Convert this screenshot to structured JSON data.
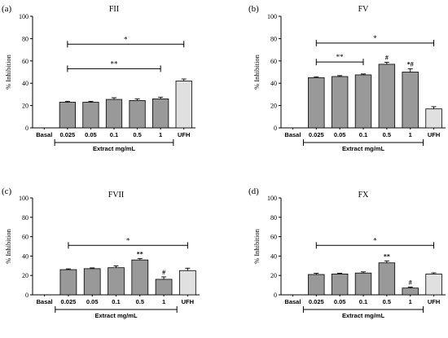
{
  "chart_data": [
    {
      "type": "bar",
      "letter": "(a)",
      "title": "FII",
      "ylabel": "% Inhibition",
      "xlabel": "Extract mg/mL",
      "ylim": [
        0,
        100
      ],
      "yticks": [
        0,
        20,
        40,
        60,
        80,
        100
      ],
      "categories": [
        "Basal",
        "0.025",
        "0.05",
        "0.1",
        "0.5",
        "1",
        "UFH"
      ],
      "values": [
        0,
        23,
        23,
        25.5,
        24.5,
        26,
        42
      ],
      "errors": [
        0,
        0.8,
        0.8,
        1.5,
        1.5,
        1.5,
        1.8
      ],
      "bar_colors": [
        "#999999",
        "#999999",
        "#999999",
        "#999999",
        "#999999",
        "#999999",
        "#e0e0e0"
      ],
      "annotations": [
        "",
        "",
        "",
        "",
        "",
        "",
        ""
      ],
      "sig_brackets": [
        {
          "from": "0.025",
          "to": "UFH",
          "y": 75,
          "label": "*"
        },
        {
          "from": "0.025",
          "to": "1",
          "y": 53,
          "label": "**"
        }
      ],
      "group_bracket": {
        "from": "0.025",
        "to": "1"
      }
    },
    {
      "type": "bar",
      "letter": "(b)",
      "title": "FV",
      "ylabel": "% Inhibition",
      "xlabel": "Extract mg/mL",
      "ylim": [
        0,
        100
      ],
      "yticks": [
        0,
        20,
        40,
        60,
        80,
        100
      ],
      "categories": [
        "Basal",
        "0.025",
        "0.05",
        "0.1",
        "0.5",
        "1",
        "UFH"
      ],
      "values": [
        0,
        45,
        46,
        47.5,
        57,
        50,
        17
      ],
      "errors": [
        0,
        0.8,
        0.8,
        0.8,
        1.8,
        3,
        2
      ],
      "bar_colors": [
        "#999999",
        "#999999",
        "#999999",
        "#999999",
        "#999999",
        "#999999",
        "#e0e0e0"
      ],
      "annotations": [
        "",
        "",
        "",
        "",
        "#",
        "*#",
        ""
      ],
      "sig_brackets": [
        {
          "from": "0.025",
          "to": "UFH",
          "y": 76,
          "label": "*"
        },
        {
          "from": "0.025",
          "to": "0.1",
          "y": 59,
          "label": "**"
        }
      ],
      "group_bracket": {
        "from": "0.025",
        "to": "1"
      }
    },
    {
      "type": "bar",
      "letter": "(c)",
      "title": "FVII",
      "ylabel": "% Inhibition",
      "xlabel": "Extract mg/mL",
      "ylim": [
        0,
        100
      ],
      "yticks": [
        0,
        20,
        40,
        60,
        80,
        100
      ],
      "categories": [
        "Basal",
        "0.025",
        "0.05",
        "0.1",
        "0.5",
        "1",
        "UFH"
      ],
      "values": [
        0,
        26,
        27,
        28,
        36,
        16,
        25
      ],
      "errors": [
        0,
        0.8,
        0.8,
        1.8,
        1.5,
        2.5,
        2.5
      ],
      "bar_colors": [
        "#999999",
        "#999999",
        "#999999",
        "#999999",
        "#999999",
        "#999999",
        "#e0e0e0"
      ],
      "annotations": [
        "",
        "",
        "",
        "",
        "**",
        "#",
        ""
      ],
      "sig_brackets": [
        {
          "from": "0.025",
          "to": "UFH",
          "y": 51,
          "label": "*"
        }
      ],
      "group_bracket": {
        "from": "0.025",
        "to": "1"
      }
    },
    {
      "type": "bar",
      "letter": "(d)",
      "title": "FX",
      "ylabel": "% Inhibition",
      "xlabel": "Extract mg/mL",
      "ylim": [
        0,
        100
      ],
      "yticks": [
        0,
        20,
        40,
        60,
        80,
        100
      ],
      "categories": [
        "Basal",
        "0.025",
        "0.05",
        "0.1",
        "0.5",
        "1",
        "UFH"
      ],
      "values": [
        0,
        21,
        21.5,
        22.5,
        33,
        7,
        21.5
      ],
      "errors": [
        0,
        1.2,
        0.8,
        1.2,
        2,
        1,
        1.2
      ],
      "bar_colors": [
        "#999999",
        "#999999",
        "#999999",
        "#999999",
        "#999999",
        "#999999",
        "#e0e0e0"
      ],
      "annotations": [
        "",
        "",
        "",
        "",
        "**",
        "#",
        ""
      ],
      "sig_brackets": [
        {
          "from": "0.025",
          "to": "UFH",
          "y": 51,
          "label": "*"
        }
      ],
      "group_bracket": {
        "from": "0.025",
        "to": "1"
      }
    }
  ]
}
